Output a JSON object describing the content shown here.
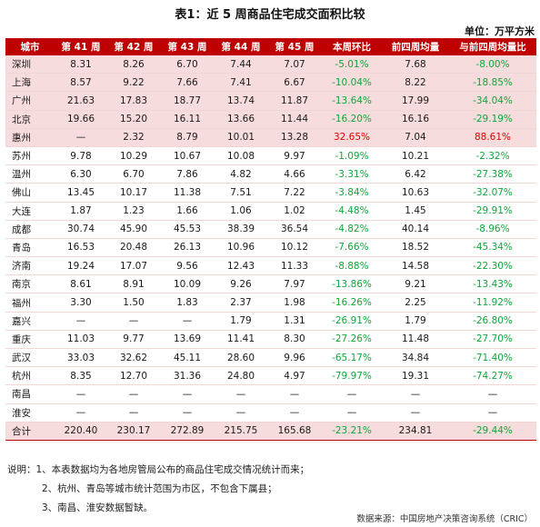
{
  "title": "表1：近 5 周商品住宅成交面积比较",
  "unit": "单位：万平方米",
  "headers": [
    "城市",
    "第 41 周",
    "第 42 周",
    "第 43 周",
    "第 44 周",
    "第 45 周",
    "本周环比",
    "前四周均量",
    "与前四周均量比"
  ],
  "rows": [
    {
      "city": "深圳",
      "w41": "8.31",
      "w42": "8.26",
      "w43": "6.70",
      "w44": "7.44",
      "w45": "7.07",
      "wow": "-5.01%",
      "avg4": "7.68",
      "vsavg": "-8.00%"
    },
    {
      "city": "上海",
      "w41": "8.57",
      "w42": "9.22",
      "w43": "7.66",
      "w44": "7.41",
      "w45": "6.67",
      "wow": "-10.04%",
      "avg4": "8.22",
      "vsavg": "-18.85%"
    },
    {
      "city": "广州",
      "w41": "21.63",
      "w42": "17.83",
      "w43": "18.77",
      "w44": "13.74",
      "w45": "11.87",
      "wow": "-13.64%",
      "avg4": "17.99",
      "vsavg": "-34.04%"
    },
    {
      "city": "北京",
      "w41": "19.66",
      "w42": "15.20",
      "w43": "16.11",
      "w44": "13.66",
      "w45": "11.44",
      "wow": "-16.20%",
      "avg4": "16.16",
      "vsavg": "-29.19%"
    },
    {
      "city": "惠州",
      "w41": "—",
      "w42": "2.32",
      "w43": "8.79",
      "w44": "10.01",
      "w45": "13.28",
      "wow": "32.65%",
      "avg4": "7.04",
      "vsavg": "88.61%"
    },
    {
      "city": "苏州",
      "w41": "9.78",
      "w42": "10.29",
      "w43": "10.67",
      "w44": "10.08",
      "w45": "9.97",
      "wow": "-1.09%",
      "avg4": "10.21",
      "vsavg": "-2.32%"
    },
    {
      "city": "温州",
      "w41": "6.30",
      "w42": "6.70",
      "w43": "7.86",
      "w44": "4.82",
      "w45": "4.66",
      "wow": "-3.31%",
      "avg4": "6.42",
      "vsavg": "-27.38%"
    },
    {
      "city": "佛山",
      "w41": "13.45",
      "w42": "10.17",
      "w43": "11.38",
      "w44": "7.51",
      "w45": "7.22",
      "wow": "-3.84%",
      "avg4": "10.63",
      "vsavg": "-32.07%"
    },
    {
      "city": "大连",
      "w41": "1.87",
      "w42": "1.23",
      "w43": "1.66",
      "w44": "1.06",
      "w45": "1.02",
      "wow": "-4.48%",
      "avg4": "1.45",
      "vsavg": "-29.91%"
    },
    {
      "city": "成都",
      "w41": "30.74",
      "w42": "45.90",
      "w43": "45.53",
      "w44": "38.39",
      "w45": "36.54",
      "wow": "-4.82%",
      "avg4": "40.14",
      "vsavg": "-8.96%"
    },
    {
      "city": "青岛",
      "w41": "16.53",
      "w42": "20.48",
      "w43": "26.13",
      "w44": "10.96",
      "w45": "10.12",
      "wow": "-7.66%",
      "avg4": "18.52",
      "vsavg": "-45.34%"
    },
    {
      "city": "济南",
      "w41": "19.24",
      "w42": "17.07",
      "w43": "9.56",
      "w44": "12.43",
      "w45": "11.33",
      "wow": "-8.88%",
      "avg4": "14.58",
      "vsavg": "-22.30%"
    },
    {
      "city": "南京",
      "w41": "8.61",
      "w42": "8.91",
      "w43": "10.09",
      "w44": "9.26",
      "w45": "7.97",
      "wow": "-13.86%",
      "avg4": "9.21",
      "vsavg": "-13.43%"
    },
    {
      "city": "福州",
      "w41": "3.30",
      "w42": "1.50",
      "w43": "1.83",
      "w44": "2.37",
      "w45": "1.98",
      "wow": "-16.26%",
      "avg4": "2.25",
      "vsavg": "-11.92%"
    },
    {
      "city": "嘉兴",
      "w41": "—",
      "w42": "—",
      "w43": "—",
      "w44": "1.79",
      "w45": "1.31",
      "wow": "-26.91%",
      "avg4": "1.79",
      "vsavg": "-26.80%"
    },
    {
      "city": "重庆",
      "w41": "11.03",
      "w42": "9.77",
      "w43": "13.69",
      "w44": "11.41",
      "w45": "8.30",
      "wow": "-27.26%",
      "avg4": "11.48",
      "vsavg": "-27.70%"
    },
    {
      "city": "武汉",
      "w41": "33.03",
      "w42": "32.62",
      "w43": "45.11",
      "w44": "28.60",
      "w45": "9.96",
      "wow": "-65.17%",
      "avg4": "34.84",
      "vsavg": "-71.40%"
    },
    {
      "city": "杭州",
      "w41": "8.35",
      "w42": "12.70",
      "w43": "31.36",
      "w44": "24.80",
      "w45": "4.97",
      "wow": "-79.97%",
      "avg4": "19.31",
      "vsavg": "-74.27%"
    },
    {
      "city": "南昌",
      "w41": "—",
      "w42": "—",
      "w43": "—",
      "w44": "—",
      "w45": "—",
      "wow": "—",
      "avg4": "—",
      "vsavg": "—"
    },
    {
      "city": "淮安",
      "w41": "—",
      "w42": "—",
      "w43": "—",
      "w44": "—",
      "w45": "—",
      "wow": "—",
      "avg4": "—",
      "vsavg": "—"
    }
  ],
  "total": {
    "city": "合计",
    "w41": "220.40",
    "w42": "230.17",
    "w43": "272.89",
    "w44": "215.75",
    "w45": "165.68",
    "wow": "-23.21%",
    "avg4": "234.81",
    "vsavg": "-29.44%"
  },
  "notes": [
    "说明：1、本表数据均为各地房管局公布的商品住宅成交情况统计而来；",
    "2、杭州、青岛等城市统计范围为市区，不包含下属县；",
    "3、南昌、淮安数据暂缺。"
  ],
  "source": "数据来源：中国房地产决策咨询系统（CRIC）",
  "colors": {
    "header_bg": "#bf0000",
    "highlight_bg": "#f6dcdc",
    "negative": "#12a53a",
    "positive": "#e00000"
  }
}
